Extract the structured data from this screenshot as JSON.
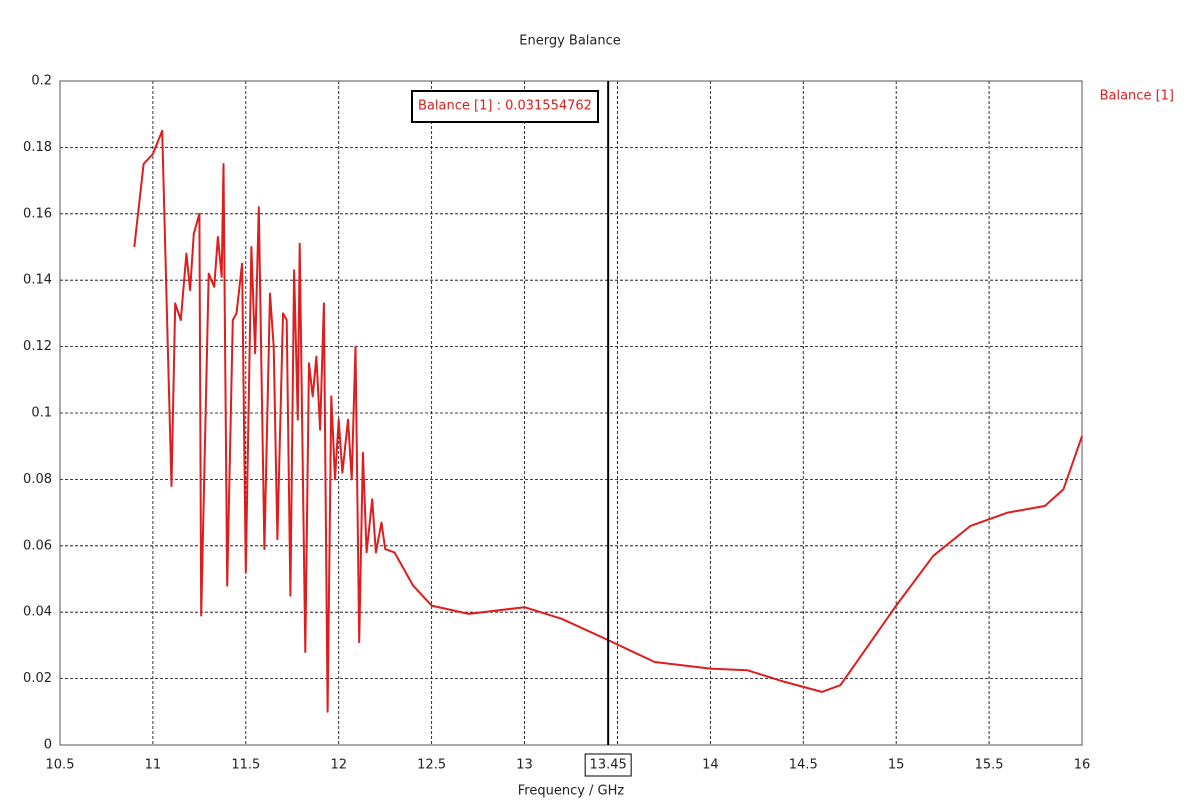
{
  "chart_data": {
    "type": "line",
    "title": "Energy Balance",
    "x_label": "Frequency / GHz",
    "xlim": [
      10.5,
      16
    ],
    "xticks": [
      10.5,
      11,
      11.5,
      12,
      12.5,
      13,
      13.5,
      14,
      14.5,
      15,
      15.5,
      16
    ],
    "ylim": [
      0,
      0.2
    ],
    "yticks": [
      0,
      0.02,
      0.04,
      0.06,
      0.08,
      0.1,
      0.12,
      0.14,
      0.16,
      0.18,
      0.2
    ],
    "grid": true,
    "legend": "top-right",
    "marker": {
      "x": 13.45,
      "label": "Balance [1] : 0.031554762"
    },
    "series": [
      {
        "name": "Balance [1]",
        "color": "#e01c1c",
        "x": [
          10.9,
          10.95,
          11.0,
          11.05,
          11.08,
          11.1,
          11.12,
          11.15,
          11.18,
          11.2,
          11.22,
          11.25,
          11.26,
          11.3,
          11.33,
          11.35,
          11.37,
          11.38,
          11.4,
          11.43,
          11.45,
          11.48,
          11.5,
          11.53,
          11.55,
          11.57,
          11.6,
          11.63,
          11.65,
          11.67,
          11.7,
          11.72,
          11.74,
          11.76,
          11.78,
          11.79,
          11.82,
          11.84,
          11.86,
          11.88,
          11.9,
          11.92,
          11.94,
          11.96,
          11.98,
          12.0,
          12.02,
          12.05,
          12.07,
          12.09,
          12.11,
          12.13,
          12.15,
          12.18,
          12.2,
          12.23,
          12.25,
          12.3,
          12.4,
          12.5,
          12.7,
          13.0,
          13.2,
          13.45,
          13.7,
          14.0,
          14.2,
          14.4,
          14.6,
          14.7,
          14.85,
          15.0,
          15.2,
          15.4,
          15.6,
          15.8,
          15.9,
          16.0
        ],
        "values": [
          0.15,
          0.175,
          0.178,
          0.185,
          0.12,
          0.078,
          0.133,
          0.128,
          0.148,
          0.137,
          0.154,
          0.16,
          0.039,
          0.142,
          0.138,
          0.153,
          0.141,
          0.175,
          0.048,
          0.128,
          0.13,
          0.145,
          0.052,
          0.15,
          0.118,
          0.162,
          0.059,
          0.136,
          0.12,
          0.062,
          0.13,
          0.128,
          0.045,
          0.143,
          0.098,
          0.151,
          0.028,
          0.115,
          0.105,
          0.117,
          0.095,
          0.133,
          0.01,
          0.105,
          0.08,
          0.098,
          0.082,
          0.098,
          0.08,
          0.12,
          0.031,
          0.088,
          0.058,
          0.074,
          0.058,
          0.067,
          0.059,
          0.058,
          0.048,
          0.042,
          0.0395,
          0.0415,
          0.038,
          0.0316,
          0.025,
          0.023,
          0.0225,
          0.019,
          0.016,
          0.018,
          0.03,
          0.042,
          0.057,
          0.066,
          0.07,
          0.072,
          0.077,
          0.093
        ]
      }
    ]
  }
}
